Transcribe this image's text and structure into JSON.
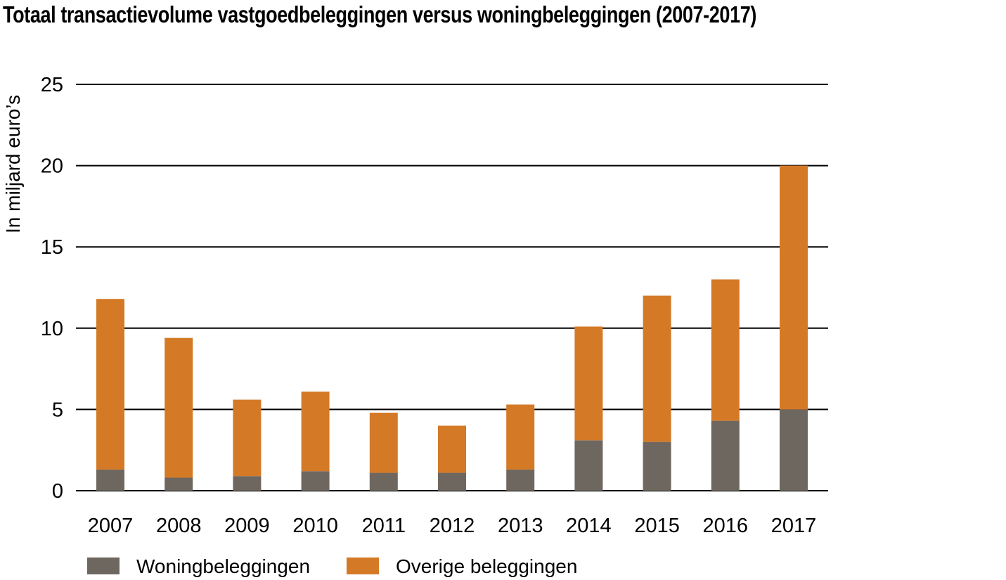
{
  "chart_data": {
    "type": "bar",
    "stacked": true,
    "title": "Totaal transactievolume vastgoedbeleggingen versus woningbeleggingen (2007-2017)",
    "ylabel": "In miljard euro’s",
    "xlabel": "",
    "ylim": [
      0,
      25
    ],
    "yticks": [
      0,
      5,
      10,
      15,
      20,
      25
    ],
    "grid": true,
    "legend_position": "bottom-left",
    "categories": [
      "2007",
      "2008",
      "2009",
      "2010",
      "2011",
      "2012",
      "2013",
      "2014",
      "2015",
      "2016",
      "2017"
    ],
    "series": [
      {
        "name": "Woningbeleggingen",
        "color": "#6e6760",
        "values": [
          1.3,
          0.8,
          0.9,
          1.2,
          1.1,
          1.1,
          1.3,
          3.1,
          3.0,
          4.3,
          5.0
        ]
      },
      {
        "name": "Overige beleggingen",
        "color": "#d47a27",
        "values": [
          10.5,
          8.6,
          4.7,
          4.9,
          3.7,
          2.9,
          4.0,
          7.0,
          9.0,
          8.7,
          15.0
        ]
      }
    ]
  }
}
